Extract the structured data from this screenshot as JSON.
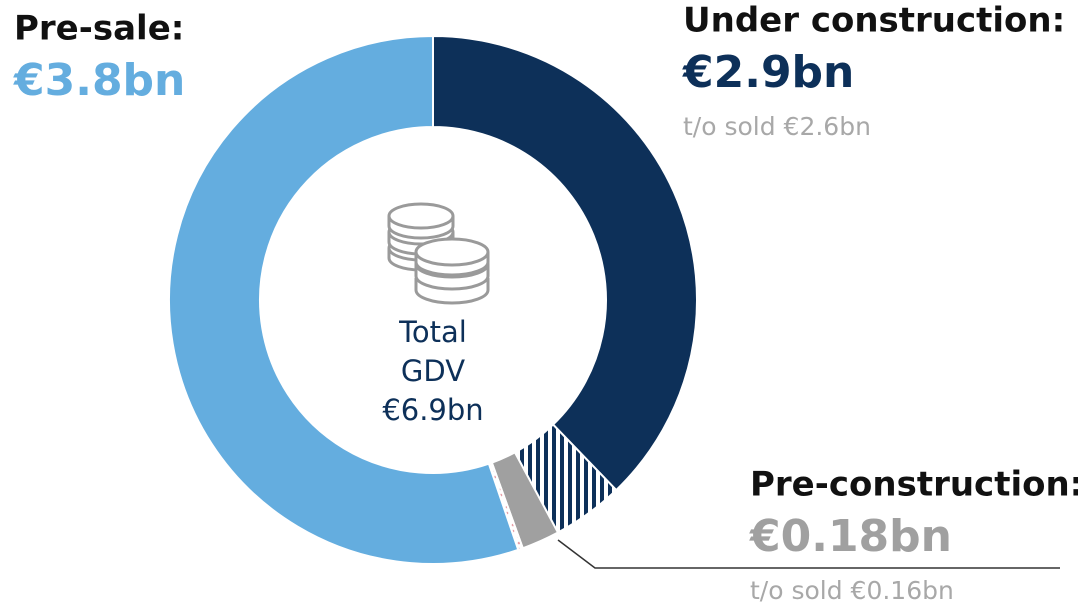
{
  "chart_data": {
    "type": "donut",
    "categories": [
      "Under construction:",
      "Pre-construction:",
      "Pre-sale:"
    ],
    "values": [
      2.9,
      0.18,
      3.8
    ],
    "value_labels": [
      "€2.9bn",
      "€0.18bn",
      "€3.8bn"
    ],
    "sold": [
      2.6,
      0.16,
      null
    ],
    "sold_labels": [
      "t/o sold €2.6bn",
      "t/o sold €0.16bn",
      null
    ],
    "colors": [
      "#0d3059",
      "#a0a0a0",
      "#64addf"
    ],
    "center_text": [
      "Total",
      "GDV",
      "€6.9bn"
    ]
  }
}
